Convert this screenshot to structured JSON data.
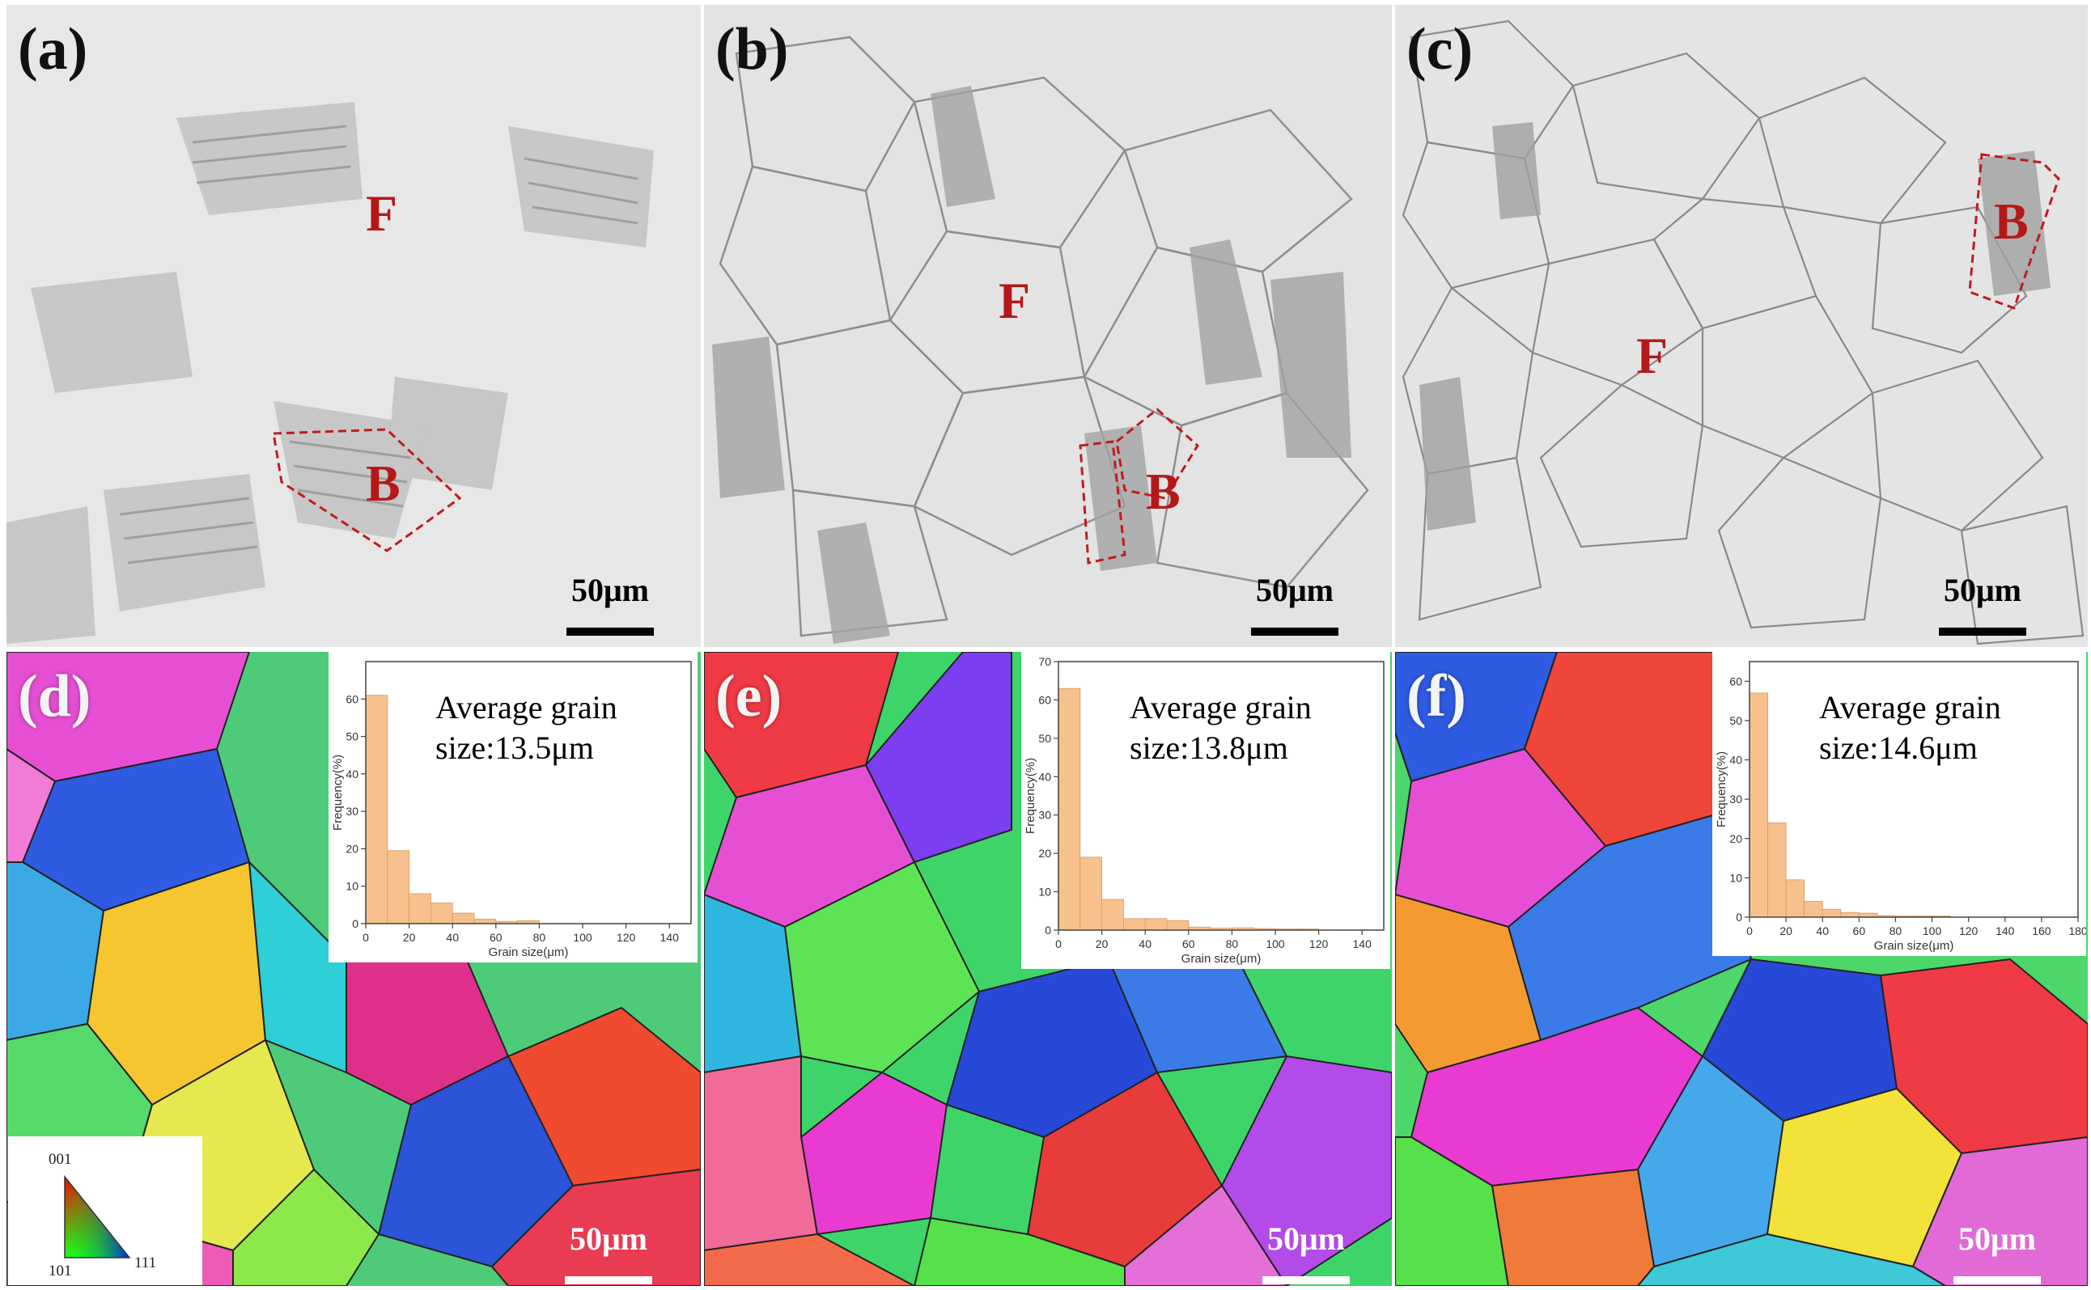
{
  "panels": {
    "a": {
      "label": "(a)",
      "phase_f": "F",
      "phase_b": "B",
      "scale": "50μm"
    },
    "b": {
      "label": "(b)",
      "phase_f": "F",
      "phase_b": "B",
      "scale": "50μm"
    },
    "c": {
      "label": "(c)",
      "phase_f": "F",
      "phase_b": "B",
      "scale": "50μm"
    },
    "d": {
      "label": "(d)",
      "scale": "50μm",
      "avg_line1": "Average grain",
      "avg_line2": "size:13.5μm"
    },
    "e": {
      "label": "(e)",
      "scale": "50μm",
      "avg_line1": "Average grain",
      "avg_line2": "size:13.8μm"
    },
    "f": {
      "label": "(f)",
      "scale": "50μm",
      "avg_line1": "Average grain",
      "avg_line2": "size:14.6μm"
    }
  },
  "ipf_legend": {
    "top": "001",
    "left": "101",
    "right": "111"
  },
  "colors": {
    "phase_label": "#b41818",
    "bainite_outline": "#c01c1c",
    "histogram_bar": "#f7c08c"
  },
  "chart_data": [
    {
      "type": "bar",
      "panel": "d",
      "xlabel": "Grain size(μm)",
      "ylabel": "Frequency(%)",
      "xlim": [
        0,
        150
      ],
      "ylim": [
        0,
        70
      ],
      "xticks": [
        0,
        20,
        40,
        60,
        80,
        100,
        120,
        140
      ],
      "yticks": [
        0,
        10,
        20,
        30,
        40,
        50,
        60
      ],
      "bin_width": 10,
      "x": [
        5,
        15,
        25,
        35,
        45,
        55,
        65,
        75
      ],
      "values": [
        61,
        19.5,
        8,
        5.5,
        2.8,
        1.2,
        0.6,
        0.8
      ]
    },
    {
      "type": "bar",
      "panel": "e",
      "xlabel": "Grain size(μm)",
      "ylabel": "Frequency(%)",
      "xlim": [
        0,
        150
      ],
      "ylim": [
        0,
        70
      ],
      "xticks": [
        0,
        20,
        40,
        60,
        80,
        100,
        120,
        140
      ],
      "yticks": [
        0,
        10,
        20,
        30,
        40,
        50,
        60,
        70
      ],
      "bin_width": 10,
      "x": [
        5,
        15,
        25,
        35,
        45,
        55,
        65,
        75,
        85,
        95,
        105,
        115
      ],
      "values": [
        63,
        19,
        8,
        3,
        3,
        2.5,
        0.8,
        0.5,
        0.6,
        0.4,
        0.3,
        0.3
      ]
    },
    {
      "type": "bar",
      "panel": "f",
      "xlabel": "Grain size(μm)",
      "ylabel": "Frequency(%)",
      "xlim": [
        0,
        180
      ],
      "ylim": [
        0,
        65
      ],
      "xticks": [
        0,
        20,
        40,
        60,
        80,
        100,
        120,
        140,
        160,
        180
      ],
      "yticks": [
        0,
        10,
        20,
        30,
        40,
        50,
        60
      ],
      "bin_width": 10,
      "x": [
        5,
        15,
        25,
        35,
        45,
        55,
        65,
        75,
        85,
        95,
        105
      ],
      "values": [
        57,
        24,
        9.5,
        4,
        2,
        1.2,
        1,
        0.4,
        0.3,
        0.3,
        0.3
      ]
    }
  ]
}
